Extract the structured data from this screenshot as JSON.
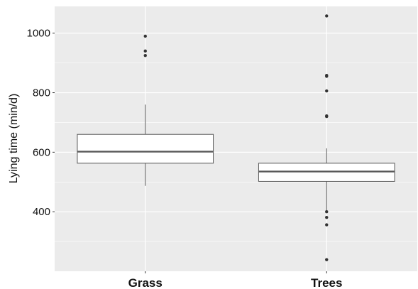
{
  "chart_data": {
    "type": "boxplot",
    "title": "",
    "xlabel": "",
    "ylabel": "Lying time (min/d)",
    "categories": [
      "Grass",
      "Trees"
    ],
    "ylim": [
      200,
      1090
    ],
    "yticks": [
      400,
      600,
      800,
      1000
    ],
    "grid": true,
    "legend": "none",
    "boxes": [
      {
        "category": "Grass",
        "whisker_low": 487,
        "q1": 563,
        "median": 602,
        "q3": 660,
        "whisker_high": 760,
        "outliers": [
          990,
          940,
          925
        ]
      },
      {
        "category": "Trees",
        "whisker_low": 400,
        "q1": 502,
        "median": 535,
        "q3": 563,
        "whisker_high": 613,
        "outliers": [
          1058,
          858,
          855,
          806,
          722,
          720,
          400,
          381,
          356,
          239
        ]
      }
    ],
    "colors": {
      "panel_background": "#ebebeb",
      "grid": "#ffffff",
      "box_fill": "#ffffff",
      "box_stroke": "#595959",
      "median": "#595959",
      "outlier": "#333333"
    }
  }
}
